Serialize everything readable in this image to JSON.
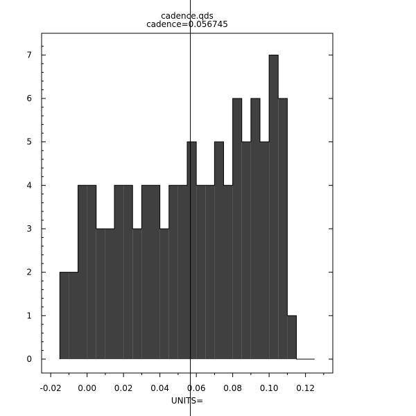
{
  "chart_data": {
    "type": "bar",
    "title": "cadence.qds",
    "subtitle": "cadence=0.056745",
    "xlabel": "UNITS=",
    "ylabel": "",
    "xlim": [
      -0.025,
      0.135
    ],
    "ylim": [
      -0.32,
      7.5
    ],
    "marker_x": 0.056745,
    "bin_width": 0.005,
    "x": [
      -0.015,
      -0.01,
      -0.005,
      0.0,
      0.005,
      0.01,
      0.015,
      0.02,
      0.025,
      0.03,
      0.035,
      0.04,
      0.045,
      0.05,
      0.055,
      0.06,
      0.065,
      0.07,
      0.075,
      0.08,
      0.085,
      0.09,
      0.095,
      0.1,
      0.105,
      0.11,
      0.115,
      0.12
    ],
    "values": [
      2,
      2,
      4,
      4,
      3,
      3,
      4,
      4,
      3,
      4,
      4,
      3,
      4,
      4,
      5,
      4,
      4,
      5,
      4,
      6,
      5,
      6,
      5,
      7,
      6,
      1,
      0,
      0
    ],
    "x_ticks": [
      -0.02,
      0.0,
      0.02,
      0.04,
      0.06,
      0.08,
      0.1,
      0.12
    ],
    "x_tick_labels": [
      "-0.02",
      "0.00",
      "0.02",
      "0.04",
      "0.06",
      "0.08",
      "0.10",
      "0.12"
    ],
    "y_ticks": [
      0,
      1,
      2,
      3,
      4,
      5,
      6,
      7
    ],
    "y_tick_labels": [
      "0",
      "1",
      "2",
      "3",
      "4",
      "5",
      "6",
      "7"
    ],
    "grid": false,
    "colors": {
      "fill": "#404040",
      "stroke": "#000000",
      "frame": "#000000",
      "marker": "#000000",
      "background": "#ffffff"
    }
  }
}
